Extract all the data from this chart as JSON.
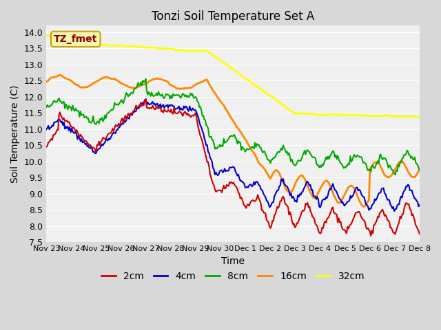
{
  "title": "Tonzi Soil Temperature Set A",
  "xlabel": "Time",
  "ylabel": "Soil Temperature (C)",
  "ylim": [
    7.5,
    14.2
  ],
  "bg_color": "#d8d8d8",
  "plot_bg_color": "#f0f0f0",
  "legend_label": "TZ_fmet",
  "legend_bg": "#f5f5b0",
  "legend_border": "#c8a000",
  "legend_text_color": "#8b0000",
  "tick_labels": [
    "Nov 23",
    "Nov 24",
    "Nov 25",
    "Nov 26",
    "Nov 27",
    "Nov 28",
    "Nov 29",
    "Nov 30",
    "Dec 1",
    "Dec 2",
    "Dec 3",
    "Dec 4",
    "Dec 5",
    "Dec 6",
    "Dec 7",
    "Dec 8"
  ],
  "colors": {
    "2cm": "#cc0000",
    "4cm": "#0000cc",
    "8cm": "#00aa00",
    "16cm": "#ff8800",
    "32cm": "#ffff00"
  },
  "line_widths": {
    "2cm": 1.5,
    "4cm": 1.5,
    "8cm": 1.5,
    "16cm": 2.0,
    "32cm": 2.0
  }
}
